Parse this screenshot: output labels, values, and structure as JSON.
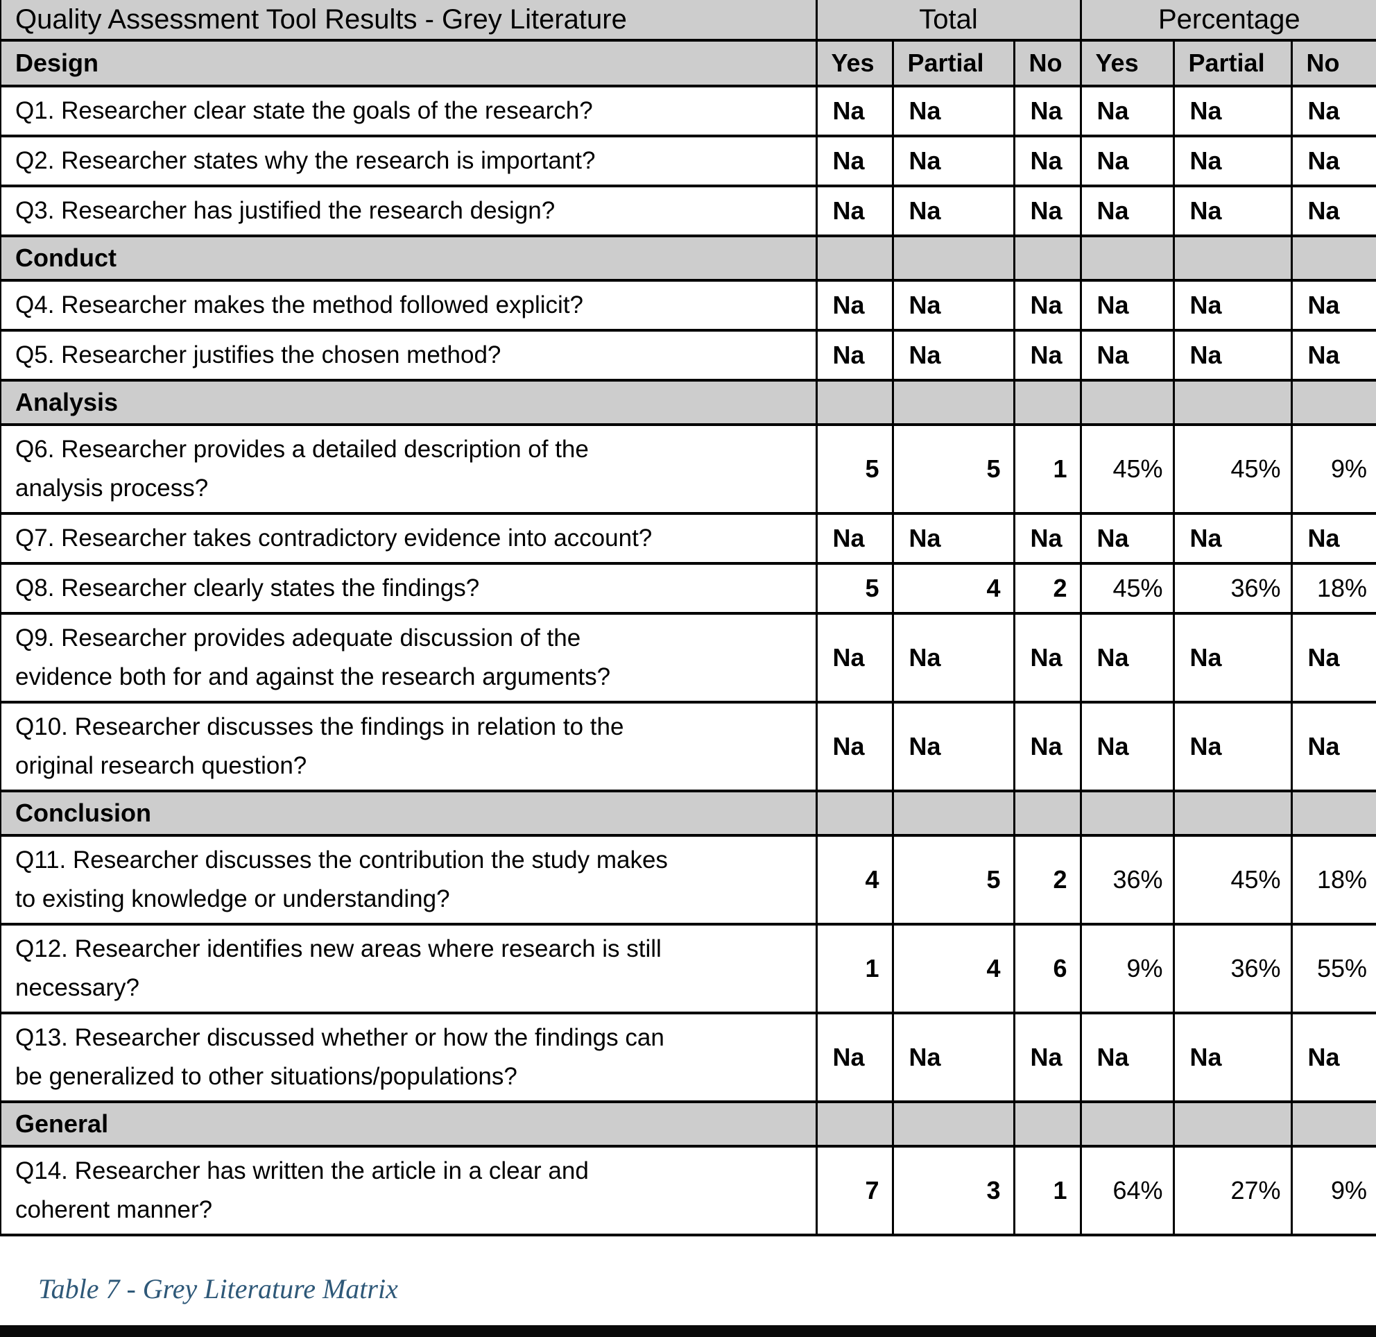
{
  "header": {
    "title": "Quality Assessment Tool Results - Grey Literature",
    "total_label": "Total",
    "percentage_label": "Percentage",
    "design_section": "Design",
    "sub_columns": [
      "Yes",
      "Partial",
      "No",
      "Yes",
      "Partial",
      "No"
    ]
  },
  "rows": [
    {
      "type": "question",
      "text": "Q1. Researcher clear state the goals of the research?",
      "values": [
        "Na",
        "Na",
        "Na",
        "Na",
        "Na",
        "Na"
      ]
    },
    {
      "type": "question",
      "text": "Q2. Researcher states why the research is important?",
      "values": [
        "Na",
        "Na",
        "Na",
        "Na",
        "Na",
        "Na"
      ]
    },
    {
      "type": "question",
      "text": "Q3. Researcher has justified the research design?",
      "values": [
        "Na",
        "Na",
        "Na",
        "Na",
        "Na",
        "Na"
      ]
    },
    {
      "type": "section",
      "text": "Conduct"
    },
    {
      "type": "question",
      "text": "Q4. Researcher makes the method followed explicit?",
      "values": [
        "Na",
        "Na",
        "Na",
        "Na",
        "Na",
        "Na"
      ]
    },
    {
      "type": "question",
      "text": "Q5. Researcher justifies the chosen method?",
      "values": [
        "Na",
        "Na",
        "Na",
        "Na",
        "Na",
        "Na"
      ]
    },
    {
      "type": "section",
      "text": "Analysis"
    },
    {
      "type": "question",
      "text": "Q6. Researcher provides a detailed description of the\nanalysis process?",
      "values": [
        "5",
        "5",
        "1",
        "45%",
        "45%",
        "9%"
      ]
    },
    {
      "type": "question",
      "text": "Q7. Researcher takes contradictory evidence into account?",
      "values": [
        "Na",
        "Na",
        "Na",
        "Na",
        "Na",
        "Na"
      ]
    },
    {
      "type": "question",
      "text": "Q8. Researcher clearly states the findings?",
      "values": [
        "5",
        "4",
        "2",
        "45%",
        "36%",
        "18%"
      ]
    },
    {
      "type": "question",
      "text": "Q9. Researcher provides adequate discussion of the\nevidence both for and against the research arguments?",
      "values": [
        "Na",
        "Na",
        "Na",
        "Na",
        "Na",
        "Na"
      ]
    },
    {
      "type": "question",
      "text": "Q10. Researcher discusses the findings in relation to the\noriginal research question?",
      "values": [
        "Na",
        "Na",
        "Na",
        "Na",
        "Na",
        "Na"
      ]
    },
    {
      "type": "section",
      "text": "Conclusion"
    },
    {
      "type": "question",
      "text": "Q11. Researcher discusses the contribution the study makes\nto existing knowledge or understanding?",
      "values": [
        "4",
        "5",
        "2",
        "36%",
        "45%",
        "18%"
      ]
    },
    {
      "type": "question",
      "text": "Q12. Researcher identifies new areas where research is still\nnecessary?",
      "values": [
        "1",
        "4",
        "6",
        "9%",
        "36%",
        "55%"
      ]
    },
    {
      "type": "question",
      "text": "Q13. Researcher discussed whether or how the findings can\nbe generalized to other situations/populations?",
      "values": [
        "Na",
        "Na",
        "Na",
        "Na",
        "Na",
        "Na"
      ]
    },
    {
      "type": "section",
      "text": "General"
    },
    {
      "type": "question",
      "text": "Q14. Researcher has written the article in a clear and\ncoherent manner?",
      "values": [
        "7",
        "3",
        "1",
        "64%",
        "27%",
        "9%"
      ]
    }
  ],
  "caption": {
    "text": "Table 7 - Grey Literature Matrix",
    "color": "#2E5878"
  },
  "colors": {
    "header_background": "#CDCDCD",
    "grid_line": "#000000",
    "text": "#000000",
    "bottom_bar": "#0a0a0a"
  }
}
